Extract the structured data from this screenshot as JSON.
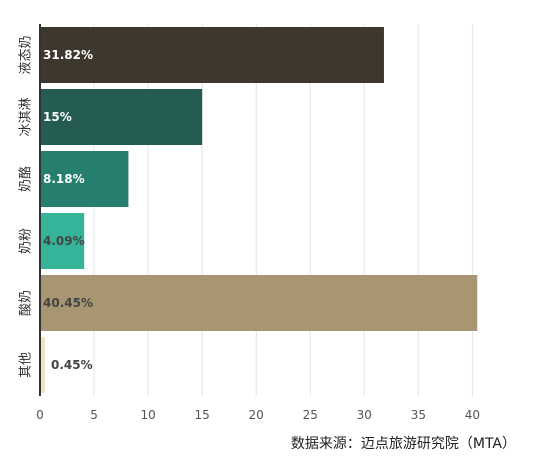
{
  "chart_data": {
    "type": "bar",
    "orientation": "horizontal",
    "categories": [
      "液态奶",
      "冰淇淋",
      "奶酪",
      "奶粉",
      "酸奶",
      "其他"
    ],
    "values": [
      31.82,
      15,
      8.18,
      4.09,
      40.45,
      0.45
    ],
    "data_labels": [
      "31.82%",
      "15%",
      "8.18%",
      "4.09%",
      "40.45%",
      "0.45%"
    ],
    "colors": [
      "#3e372d",
      "#245c52",
      "#267e6f",
      "#35b49a",
      "#a89672",
      "#f2e2c0"
    ],
    "label_colors": [
      "#ffffff",
      "#ffffff",
      "#ffffff",
      "#444444",
      "#444444",
      "#444444"
    ],
    "xlim": [
      0,
      42
    ],
    "xticks": [
      0,
      5,
      10,
      15,
      20,
      25,
      30,
      35,
      40
    ],
    "grid": true,
    "source": "数据来源：迈点旅游研究院（MTA）"
  }
}
